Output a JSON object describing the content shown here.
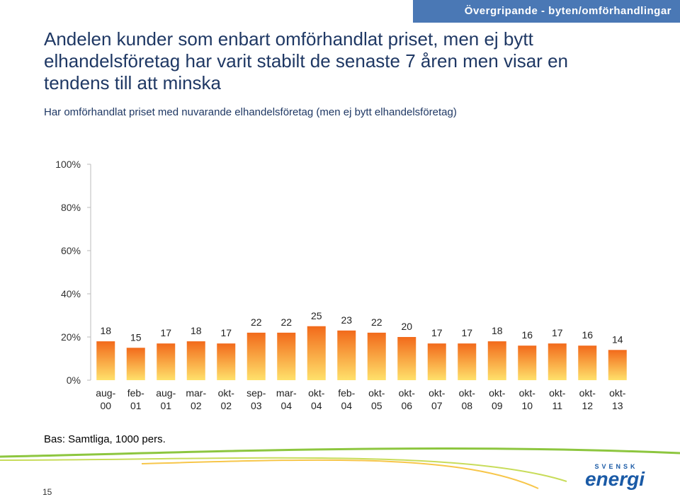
{
  "header": "Övergripande - byten/omförhandlingar",
  "chart_data": {
    "type": "bar",
    "title": "Andelen kunder som enbart omförhandlat priset, men ej bytt elhandelsföretag har varit stabilt de senaste 7 åren men visar en tendens till att minska",
    "subtitle": "Har omförhandlat priset med nuvarande elhandelsföretag (men ej bytt elhandelsföretag)",
    "categories": [
      "aug-00",
      "feb-01",
      "aug-01",
      "mar-02",
      "okt-02",
      "sep-03",
      "mar-04",
      "okt-04",
      "feb-04",
      "okt-05",
      "okt-06",
      "okt-07",
      "okt-08",
      "okt-09",
      "okt-10",
      "okt-11",
      "okt-12",
      "okt-13"
    ],
    "values": [
      18,
      15,
      17,
      18,
      17,
      22,
      22,
      25,
      23,
      22,
      20,
      17,
      17,
      18,
      16,
      17,
      16,
      14
    ],
    "color": "#f26a1b",
    "ylim": [
      0,
      100
    ],
    "yticks": [
      {
        "value": 0,
        "label": "0%"
      },
      {
        "value": 20,
        "label": "20%"
      },
      {
        "value": 40,
        "label": "40%"
      },
      {
        "value": 60,
        "label": "60%"
      },
      {
        "value": 80,
        "label": "80%"
      },
      {
        "value": 100,
        "label": "100%"
      }
    ],
    "note": "Bas: Samtliga, 1000 pers."
  },
  "page_number": "15",
  "logo": {
    "top": "SVENSK",
    "main": "energi"
  }
}
